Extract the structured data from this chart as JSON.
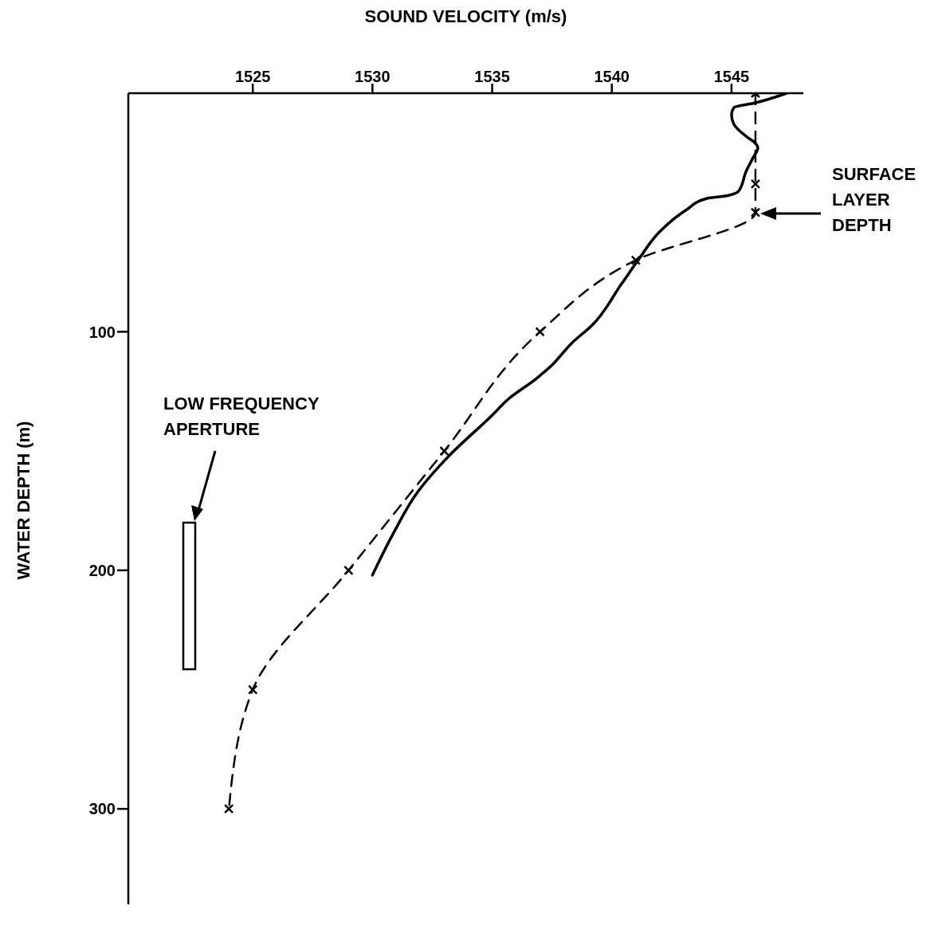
{
  "chart_data": {
    "type": "line",
    "xlabel": "SOUND VELOCITY (m/s)",
    "ylabel": "WATER DEPTH (m)",
    "xlim": [
      1519.8,
      1548
    ],
    "xticks": [
      1525,
      1530,
      1535,
      1540,
      1545
    ],
    "ylim": [
      340,
      0
    ],
    "yticks": [
      100,
      200,
      300
    ],
    "grid": false,
    "series": [
      {
        "color": "#000000",
        "line_style": "solid",
        "marker": "none",
        "x": [
          1547.3,
          1546.0,
          1545.1,
          1545.0,
          1545.1,
          1545.6,
          1546.0,
          1546.1,
          1545.9,
          1545.6,
          1545.3,
          1544.8,
          1544.0,
          1543.1,
          1542.0,
          1541.1,
          1540.4,
          1539.2,
          1538.3,
          1537.5,
          1536.8,
          1535.7,
          1535.0,
          1533.2,
          1531.9,
          1530.9,
          1530.0
        ],
        "values": [
          0,
          4,
          6,
          9,
          13,
          18,
          21,
          23,
          27,
          33,
          41,
          43,
          44,
          49,
          58,
          70,
          80,
          97,
          105,
          114,
          120,
          128,
          135,
          152,
          167,
          184,
          202
        ]
      },
      {
        "color": "#000000",
        "line_style": "dashed",
        "marker": "cross",
        "x": [
          1546,
          1546,
          1546,
          1541,
          1537,
          1533,
          1529,
          1525,
          1524
        ],
        "values": [
          0,
          38,
          50,
          70,
          100,
          150,
          200,
          250,
          300
        ]
      }
    ],
    "annotations": [
      "LOW FREQUENCY\nAPERTURE",
      "SURFACE\nLAYER\nDEPTH"
    ]
  }
}
